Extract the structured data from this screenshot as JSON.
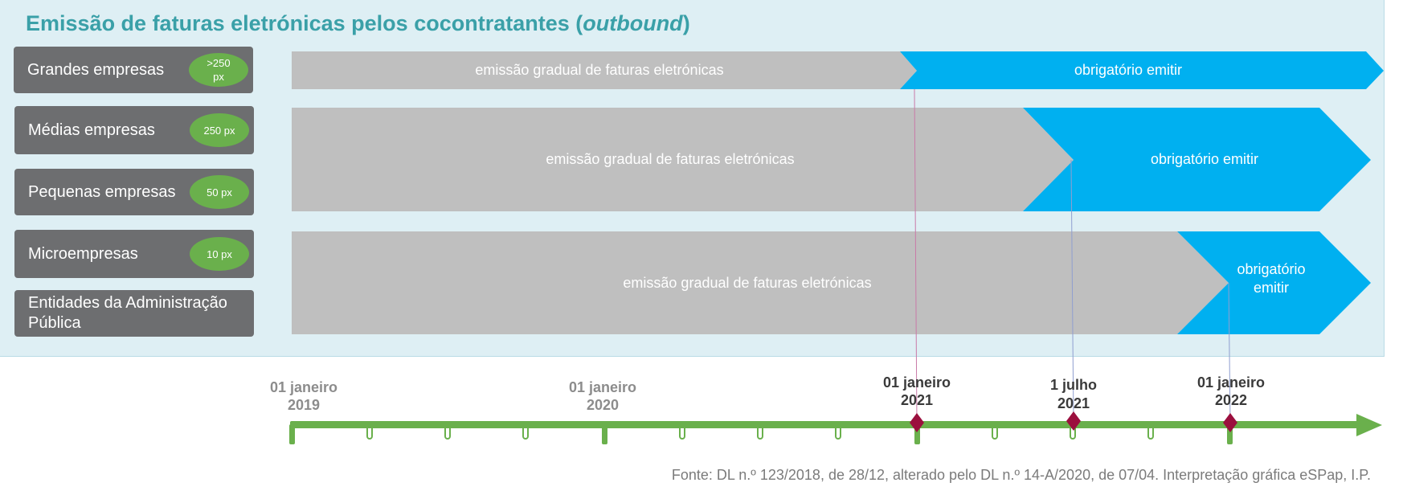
{
  "header": {
    "title": "Emissão de faturas eletrónicas pelos cocontratantes (",
    "title_em": "outbound",
    "title_end": ")"
  },
  "categories": [
    {
      "label": "Grandes empresas",
      "badge": ">250 px"
    },
    {
      "label": "Médias empresas",
      "badge": "250 px"
    },
    {
      "label": "Pequenas empresas",
      "badge": "50 px"
    },
    {
      "label": "Microempresas",
      "badge": "10 px"
    },
    {
      "label": "Entidades da Administração Pública",
      "badge": ""
    }
  ],
  "bars": [
    {
      "gradual_label": "emissão gradual de faturas eletrónicas",
      "mandatory_label": [
        "obrigatório emitir"
      ],
      "mandatory_from": "01 janeiro 2021"
    },
    {
      "gradual_label": "emissão gradual de faturas eletrónicas",
      "mandatory_label": [
        "obrigatório emitir"
      ],
      "mandatory_from": "1 julho 2021"
    },
    {
      "gradual_label": "emissão gradual de faturas eletrónicas",
      "mandatory_label": [
        "obrigatório",
        "emitir"
      ],
      "mandatory_from": "01 janeiro 2022"
    }
  ],
  "timeline": {
    "labels": [
      {
        "lines": [
          "01 janeiro",
          "2019"
        ],
        "highlight": false
      },
      {
        "lines": [
          "01 janeiro",
          "2020"
        ],
        "highlight": false
      },
      {
        "lines": [
          "01 janeiro",
          "2021"
        ],
        "highlight": true
      },
      {
        "lines": [
          "1 julho",
          "2021"
        ],
        "highlight": true
      },
      {
        "lines": [
          "01 janeiro",
          "2022"
        ],
        "highlight": true
      }
    ]
  },
  "colors": {
    "gradual": "#bfbfbf",
    "mandatory": "#00b0f0",
    "timeline": "#6ab04c",
    "milestone": "#9b0f3e",
    "date_muted": "#8c8c8c",
    "date_strong": "#3a3a3a"
  },
  "footer": {
    "source": "Fonte: DL n.º 123/2018, de 28/12, alterado pelo DL n.º 14-A/2020, de 07/04. Interpretação gráfica eSPap, I.P."
  }
}
